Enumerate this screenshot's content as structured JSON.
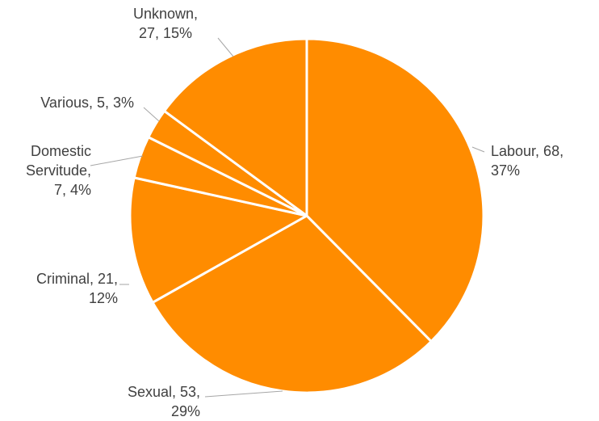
{
  "chart_data": {
    "type": "pie",
    "title": "",
    "legend": "none",
    "color": "#ff8c00",
    "slices": [
      {
        "name": "Labour",
        "value": 68,
        "percent": "37%",
        "label_lines": [
          "Labour, 68,",
          "37%"
        ]
      },
      {
        "name": "Sexual",
        "value": 53,
        "percent": "29%",
        "label_lines": [
          "Sexual, 53,",
          "29%"
        ]
      },
      {
        "name": "Criminal",
        "value": 21,
        "percent": "12%",
        "label_lines": [
          "Criminal, 21,",
          "12%"
        ]
      },
      {
        "name": "Domestic Servitude",
        "value": 7,
        "percent": "4%",
        "label_lines": [
          "Domestic",
          "Servitude,",
          "7, 4%"
        ]
      },
      {
        "name": "Various",
        "value": 5,
        "percent": "3%",
        "label_lines": [
          "Various, 5, 3%"
        ]
      },
      {
        "name": "Unknown",
        "value": 27,
        "percent": "15%",
        "label_lines": [
          "Unknown,",
          "27, 15%"
        ]
      }
    ]
  }
}
